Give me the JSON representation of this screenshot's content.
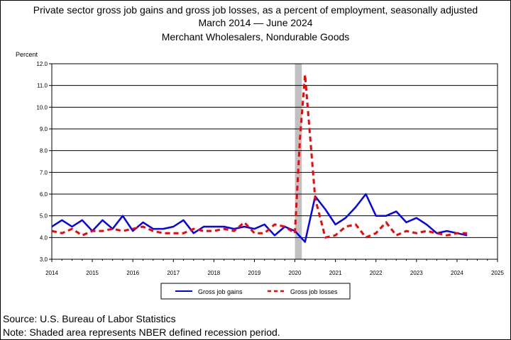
{
  "chart_data": {
    "type": "line",
    "title": "Private sector gross job gains and gross job losses, as a percent of employment, seasonally adjusted",
    "subtitle": "March 2014 — June 2024",
    "subtitle2": "Merchant Wholesalers, Nondurable Goods",
    "ylabel": "Percent",
    "ylim": [
      3.0,
      12.0
    ],
    "yticks": [
      "3.0",
      "4.0",
      "5.0",
      "6.0",
      "7.0",
      "8.0",
      "9.0",
      "10.0",
      "11.0",
      "12.0"
    ],
    "xlim": [
      2014,
      2025
    ],
    "xticks": [
      "2014",
      "2015",
      "2016",
      "2017",
      "2018",
      "2019",
      "2020",
      "2021",
      "2022",
      "2023",
      "2024",
      "2025"
    ],
    "grid": true,
    "legend_position": "bottom",
    "recession_shade": [
      2020.0,
      2020.17
    ],
    "series": [
      {
        "name": "Gross job gains",
        "color": "#0000ff",
        "style": "solid",
        "x": [
          2014.0,
          2014.25,
          2014.5,
          2014.75,
          2015.0,
          2015.25,
          2015.5,
          2015.75,
          2016.0,
          2016.25,
          2016.5,
          2016.75,
          2017.0,
          2017.25,
          2017.5,
          2017.75,
          2018.0,
          2018.25,
          2018.5,
          2018.75,
          2019.0,
          2019.25,
          2019.5,
          2019.75,
          2020.0,
          2020.25,
          2020.5,
          2020.75,
          2021.0,
          2021.25,
          2021.5,
          2021.75,
          2022.0,
          2022.25,
          2022.5,
          2022.75,
          2023.0,
          2023.25,
          2023.5,
          2023.75,
          2024.0,
          2024.25
        ],
        "values": [
          4.5,
          4.8,
          4.5,
          4.8,
          4.3,
          4.8,
          4.4,
          5.0,
          4.3,
          4.7,
          4.4,
          4.4,
          4.5,
          4.8,
          4.2,
          4.5,
          4.5,
          4.5,
          4.4,
          4.5,
          4.4,
          4.6,
          4.1,
          4.5,
          4.3,
          3.8,
          5.9,
          5.3,
          4.6,
          4.9,
          5.4,
          6.0,
          5.0,
          5.0,
          5.2,
          4.7,
          4.9,
          4.6,
          4.2,
          4.3,
          4.2,
          4.1
        ]
      },
      {
        "name": "Gross job losses",
        "color": "#ff0000",
        "style": "dashed",
        "x": [
          2014.0,
          2014.25,
          2014.5,
          2014.75,
          2015.0,
          2015.25,
          2015.5,
          2015.75,
          2016.0,
          2016.25,
          2016.5,
          2016.75,
          2017.0,
          2017.25,
          2017.5,
          2017.75,
          2018.0,
          2018.25,
          2018.5,
          2018.75,
          2019.0,
          2019.25,
          2019.5,
          2019.75,
          2020.0,
          2020.125,
          2020.25,
          2020.5,
          2020.75,
          2021.0,
          2021.25,
          2021.5,
          2021.75,
          2022.0,
          2022.25,
          2022.5,
          2022.75,
          2023.0,
          2023.25,
          2023.5,
          2023.75,
          2024.0,
          2024.25
        ],
        "values": [
          4.3,
          4.2,
          4.4,
          4.1,
          4.3,
          4.3,
          4.4,
          4.3,
          4.4,
          4.5,
          4.3,
          4.2,
          4.2,
          4.2,
          4.4,
          4.3,
          4.3,
          4.4,
          4.3,
          4.7,
          4.2,
          4.2,
          4.6,
          4.5,
          4.2,
          8.6,
          11.5,
          5.8,
          4.0,
          4.1,
          4.5,
          4.6,
          4.0,
          4.2,
          4.7,
          4.1,
          4.3,
          4.2,
          4.3,
          4.2,
          4.1,
          4.2,
          4.2
        ]
      }
    ]
  },
  "footer": {
    "source": "Source: U.S. Bureau of Labor Statistics",
    "note": "Note: Shaded area represents NBER defined recession period."
  }
}
